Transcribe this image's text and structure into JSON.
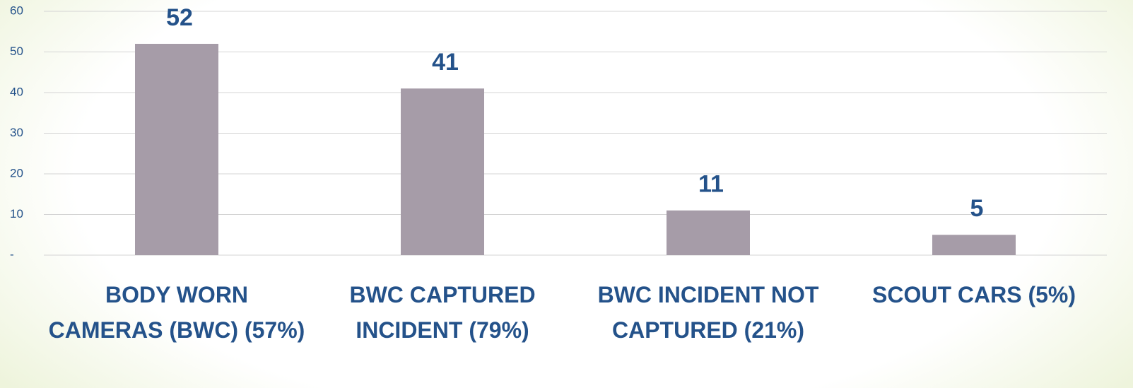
{
  "chart_data": {
    "type": "bar",
    "categories": [
      "BODY WORN CAMERAS (BWC) (57%)",
      "BWC CAPTURED INCIDENT (79%)",
      "BWC INCIDENT NOT CAPTURED (21%)",
      "SCOUT CARS (5%)"
    ],
    "values": [
      52,
      41,
      11,
      5
    ],
    "color": "#a69ca8",
    "ylim": [
      0,
      60
    ],
    "yticks": [
      {
        "value": 0,
        "label": "-"
      },
      10,
      20,
      30,
      40,
      50,
      60
    ],
    "grid": true
  }
}
